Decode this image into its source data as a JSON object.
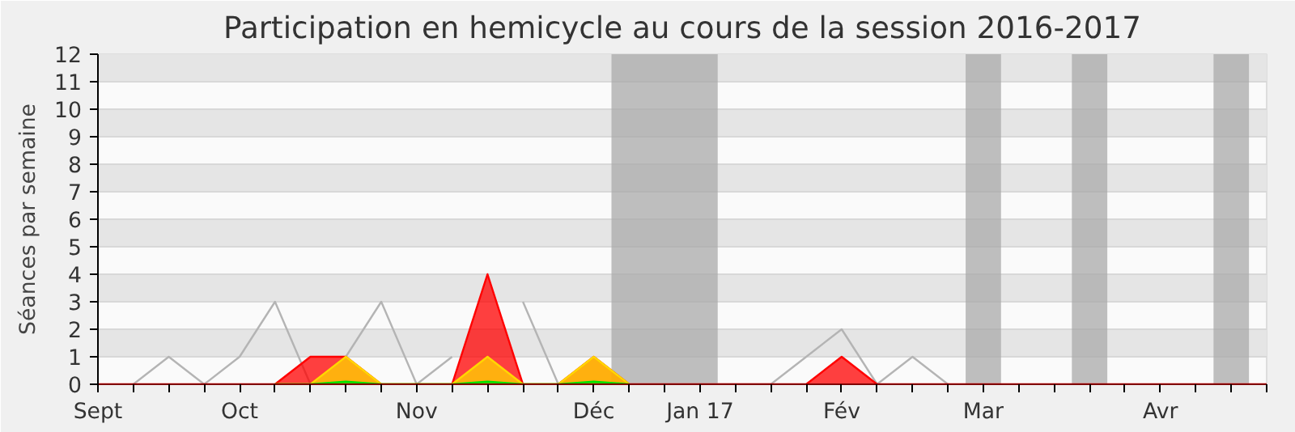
{
  "chart_data": {
    "type": "area",
    "title": "Participation en hemicycle au cours de la session 2016-2017",
    "ylabel": "Séances par semaine",
    "xlim": [
      "2016-09-07",
      "2017-04-26"
    ],
    "ylim": [
      0,
      12
    ],
    "xticks": [
      {
        "value": "2016-09-07",
        "label": "Sept"
      },
      {
        "value": "2016-09-14",
        "label": null
      },
      {
        "value": "2016-09-21",
        "label": null
      },
      {
        "value": "2016-09-28",
        "label": null
      },
      {
        "value": "2016-10-05",
        "label": "Oct"
      },
      {
        "value": "2016-10-12",
        "label": null
      },
      {
        "value": "2016-10-19",
        "label": null
      },
      {
        "value": "2016-10-26",
        "label": null
      },
      {
        "value": "2016-11-02",
        "label": null
      },
      {
        "value": "2016-11-09",
        "label": "Nov"
      },
      {
        "value": "2016-11-16",
        "label": null
      },
      {
        "value": "2016-11-23",
        "label": null
      },
      {
        "value": "2016-11-30",
        "label": null
      },
      {
        "value": "2016-12-07",
        "label": null
      },
      {
        "value": "2016-12-14",
        "label": "Déc"
      },
      {
        "value": "2016-12-21",
        "label": null
      },
      {
        "value": "2016-12-28",
        "label": null
      },
      {
        "value": "2017-01-04",
        "label": "Jan 17"
      },
      {
        "value": "2017-01-11",
        "label": null
      },
      {
        "value": "2017-01-18",
        "label": null
      },
      {
        "value": "2017-01-25",
        "label": null
      },
      {
        "value": "2017-02-01",
        "label": "Fév"
      },
      {
        "value": "2017-02-08",
        "label": null
      },
      {
        "value": "2017-02-15",
        "label": null
      },
      {
        "value": "2017-02-22",
        "label": null
      },
      {
        "value": "2017-03-01",
        "label": "Mar"
      },
      {
        "value": "2017-03-08",
        "label": null
      },
      {
        "value": "2017-03-15",
        "label": null
      },
      {
        "value": "2017-03-22",
        "label": null
      },
      {
        "value": "2017-03-29",
        "label": null
      },
      {
        "value": "2017-04-05",
        "label": "Avr"
      },
      {
        "value": "2017-04-12",
        "label": null
      },
      {
        "value": "2017-04-19",
        "label": null
      },
      {
        "value": "2017-04-26",
        "label": null
      }
    ],
    "yticks": [
      0,
      1,
      2,
      3,
      4,
      5,
      6,
      7,
      8,
      9,
      10,
      11,
      12
    ],
    "grid": "y",
    "bands": [
      {
        "axis": "x",
        "from": "2016-12-17T12:00",
        "to": "2017-01-07T12:00",
        "color": "#aaaaaa"
      },
      {
        "axis": "x",
        "from": "2017-02-25T12:00",
        "to": "2017-03-04T12:00",
        "color": "#aaaaaa"
      },
      {
        "axis": "x",
        "from": "2017-03-18T12:00",
        "to": "2017-03-25T12:00",
        "color": "#aaaaaa"
      },
      {
        "axis": "x",
        "from": "2017-04-15T12:00",
        "to": "2017-04-22T12:00",
        "color": "#aaaaaa"
      }
    ],
    "series": [
      {
        "type": "line",
        "color": "#b4b4b4",
        "x": [
          "2016-09-14",
          "2016-09-21",
          "2016-09-28",
          "2016-10-05",
          "2016-10-12",
          "2016-10-19",
          "2016-10-26",
          "2016-11-02",
          "2016-11-09",
          "2016-11-16",
          "2016-11-23",
          "2016-11-30",
          "2016-12-07",
          "2016-12-14",
          "2016-12-21",
          "2016-12-28",
          "2017-01-04",
          "2017-01-11",
          "2017-01-18",
          "2017-01-25",
          "2017-02-01",
          "2017-02-08",
          "2017-02-15",
          "2017-02-22"
        ],
        "values": [
          0,
          1,
          0,
          1,
          3,
          0,
          1,
          3,
          0,
          1,
          null,
          3,
          0,
          0,
          0,
          0,
          0,
          0,
          0,
          1,
          2,
          0,
          1,
          0
        ]
      },
      {
        "color": "#ff0000",
        "x": [
          "2016-09-07",
          "2016-09-14",
          "2016-09-21",
          "2016-09-28",
          "2016-10-05",
          "2016-10-12",
          "2016-10-19",
          "2016-10-26",
          "2016-11-02",
          "2016-11-09",
          "2016-11-16",
          "2016-11-23",
          "2016-11-30",
          "2016-12-07",
          "2016-12-14",
          "2016-12-21",
          "2016-12-28",
          "2017-01-04",
          "2017-01-11",
          "2017-01-18",
          "2017-01-25",
          "2017-02-01",
          "2017-02-08",
          "2017-02-15",
          "2017-02-22",
          "2017-03-01",
          "2017-03-08",
          "2017-03-15",
          "2017-03-22",
          "2017-03-29",
          "2017-04-05",
          "2017-04-12",
          "2017-04-19",
          "2017-04-26"
        ],
        "values": [
          0,
          0,
          0,
          0,
          0,
          0,
          1,
          1,
          0,
          0,
          0,
          4,
          0,
          0,
          1,
          0,
          0,
          0,
          0,
          0,
          0,
          1,
          0,
          0,
          0,
          0,
          0,
          0,
          0,
          0,
          0,
          0,
          0,
          0
        ]
      },
      {
        "color": "#ffd700",
        "x": [
          "2016-10-12",
          "2016-10-19",
          "2016-10-26",
          "2016-11-02",
          "2016-11-09",
          "2016-11-16",
          "2016-11-23",
          "2016-11-30",
          "2016-12-07",
          "2016-12-14",
          "2016-12-21"
        ],
        "values": [
          0,
          0,
          1,
          0,
          0,
          0,
          1,
          0,
          0,
          1,
          0
        ]
      },
      {
        "color": "#00e000",
        "x": [
          "2016-10-12",
          "2016-10-19",
          "2016-10-26",
          "2016-11-02",
          "2016-11-09",
          "2016-11-16",
          "2016-11-23",
          "2016-11-30",
          "2016-12-07",
          "2016-12-14",
          "2016-12-21"
        ],
        "values": [
          0,
          0,
          0.1,
          0,
          0,
          0,
          0.1,
          0,
          0,
          0.1,
          0
        ]
      }
    ]
  }
}
